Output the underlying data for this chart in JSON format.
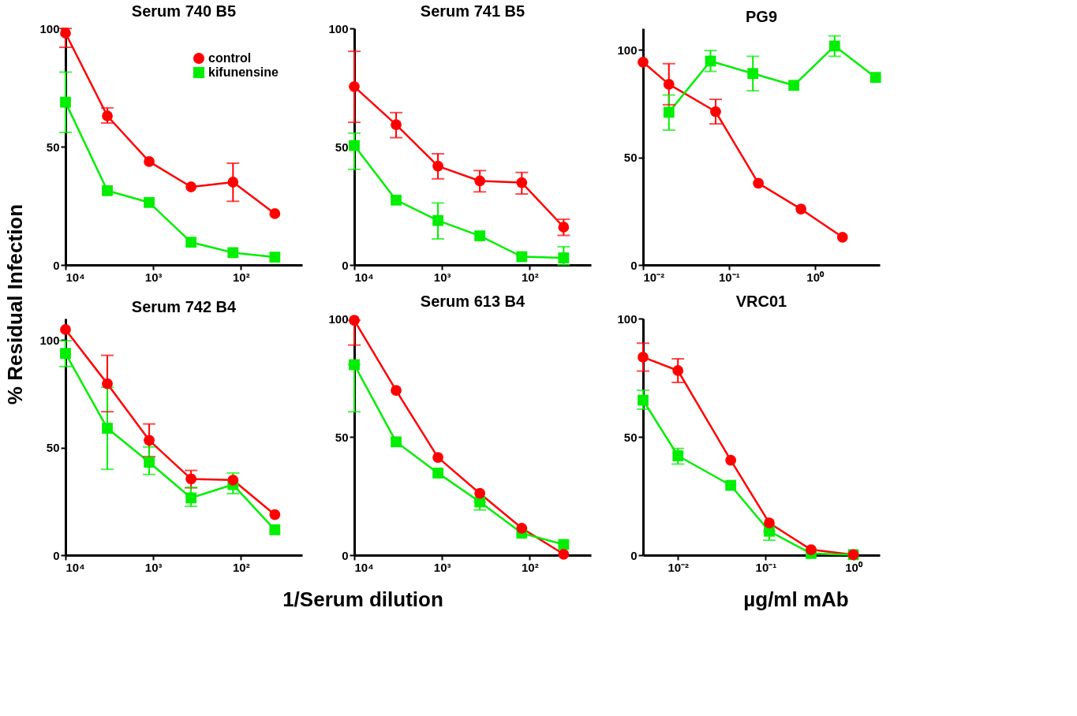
{
  "chart_data": [
    {
      "type": "line",
      "title": "Serum 740 B5",
      "ylabel": "% Residual Infection",
      "legend": "top right",
      "x": [
        10000,
        3333,
        1111,
        370,
        123,
        41
      ],
      "xlim": [
        10000,
        20
      ],
      "log": "x",
      "xticks": [
        {
          "value": 10000,
          "label": "10⁴"
        },
        {
          "value": 1000,
          "label": "10³"
        },
        {
          "value": 100,
          "label": "10²"
        }
      ],
      "ylim": [
        0,
        100
      ],
      "yticks": [
        0,
        50,
        100
      ],
      "series": [
        {
          "name": "control",
          "color": "#ff0000",
          "marker": "circle",
          "values": [
            98,
            63,
            43.7,
            33,
            35,
            21.7
          ],
          "errors": [
            [
              92,
              100
            ],
            [
              60,
              66.4
            ],
            null,
            null,
            [
              26.9,
              43
            ],
            null
          ]
        },
        {
          "name": "kifunensine",
          "color": "#00ee00",
          "marker": "square",
          "values": [
            68.8,
            31.4,
            26.4,
            9.6,
            5.2,
            3.3
          ],
          "errors": [
            [
              56,
              81.5
            ],
            null,
            null,
            null,
            null,
            null
          ]
        }
      ]
    },
    {
      "type": "line",
      "title": "Serum 741 B5",
      "x": [
        10000,
        3333,
        1111,
        370,
        123,
        41
      ],
      "xlim": [
        10000,
        20
      ],
      "log": "x",
      "xticks": [
        {
          "value": 10000,
          "label": "10⁴"
        },
        {
          "value": 1000,
          "label": "10³"
        },
        {
          "value": 100,
          "label": "10²"
        }
      ],
      "ylim": [
        0,
        100
      ],
      "yticks": [
        0,
        50,
        100
      ],
      "series": [
        {
          "color": "#ff0000",
          "marker": "circle",
          "values": [
            75.4,
            59.3,
            41.8,
            35.5,
            34.8,
            16
          ],
          "errors": [
            [
              60.3,
              90.3
            ],
            [
              53.8,
              64.4
            ],
            [
              36.4,
              47
            ],
            [
              30.9,
              39.9
            ],
            [
              30,
              39.1
            ],
            [
              12.5,
              19.3
            ]
          ]
        },
        {
          "color": "#00ee00",
          "marker": "square",
          "values": [
            50.5,
            27.4,
            18.8,
            12.3,
            3.5,
            3
          ],
          "errors": [
            [
              40.4,
              55.7
            ],
            null,
            [
              11,
              26.2
            ],
            null,
            null,
            [
              0,
              7.7
            ]
          ]
        }
      ]
    },
    {
      "type": "line",
      "title": "PG9",
      "log": "x",
      "xlim": [
        0.01,
        5.7
      ],
      "xticks": [
        {
          "value": 0.01,
          "label": "10⁻²"
        },
        {
          "value": 0.1,
          "label": "10⁻¹"
        },
        {
          "value": 1,
          "label": "10⁰"
        }
      ],
      "ylim": [
        0,
        110
      ],
      "yticks": [
        0,
        50,
        100
      ],
      "series": [
        {
          "color": "#ff0000",
          "marker": "circle",
          "x": [
            0.01,
            0.02,
            0.07,
            0.22,
            0.69,
            2.1
          ],
          "values": [
            94.3,
            84,
            71.3,
            38,
            26,
            12.9
          ],
          "errors": [
            null,
            [
              74.5,
              93.6
            ],
            [
              65.6,
              77
            ],
            null,
            null,
            null
          ]
        },
        {
          "color": "#00ee00",
          "marker": "square",
          "x": [
            0.02,
            0.061,
            0.19,
            0.57,
            1.7,
            5.1
          ],
          "values": [
            71,
            94.8,
            89,
            83.5,
            101.8,
            87.2
          ],
          "errors": [
            [
              62.7,
              79
            ],
            [
              90,
              99.7
            ],
            [
              81,
              97
            ],
            null,
            [
              97,
              106.5
            ],
            null
          ]
        }
      ]
    },
    {
      "type": "line",
      "title": "Serum 742 B4",
      "xlabel": "1/Serum dilution",
      "x": [
        10000,
        3333,
        1111,
        370,
        123,
        41
      ],
      "xlim": [
        10000,
        20
      ],
      "log": "x",
      "xticks": [
        {
          "value": 10000,
          "label": "10⁴"
        },
        {
          "value": 1000,
          "label": "10³"
        },
        {
          "value": 100,
          "label": "10²"
        }
      ],
      "ylim": [
        0,
        110
      ],
      "yticks": [
        0,
        50,
        100
      ],
      "series": [
        {
          "color": "#ff0000",
          "marker": "circle",
          "values": [
            104.9,
            79.7,
            53.4,
            35.4,
            34.9,
            18.8
          ],
          "errors": [
            null,
            [
              66.7,
              92.9
            ],
            [
              45.8,
              61
            ],
            [
              31.3,
              39.4
            ],
            null,
            null
          ]
        },
        {
          "color": "#00ee00",
          "marker": "square",
          "values": [
            93.8,
            59,
            43.2,
            26.6,
            32.8,
            11.8
          ],
          "errors": [
            [
              87.7,
              99.7
            ],
            [
              39.9,
              78.1
            ],
            [
              37.5,
              50.3
            ],
            [
              22.7,
              31.5
            ],
            [
              28.6,
              38.2
            ],
            null
          ]
        }
      ]
    },
    {
      "type": "line",
      "title": "Serum 613 B4",
      "x": [
        10000,
        3333,
        1111,
        370,
        123,
        41
      ],
      "xlim": [
        10000,
        20
      ],
      "log": "x",
      "xticks": [
        {
          "value": 10000,
          "label": "10⁴"
        },
        {
          "value": 1000,
          "label": "10³"
        },
        {
          "value": 100,
          "label": "10²"
        }
      ],
      "ylim": [
        0,
        100
      ],
      "yticks": [
        0,
        50,
        100
      ],
      "series": [
        {
          "color": "#ff0000",
          "marker": "circle",
          "values": [
            99.3,
            69.6,
            41.3,
            26.1,
            11.4,
            0.4
          ],
          "errors": [
            [
              88.8,
              99.3
            ],
            null,
            null,
            null,
            null,
            null
          ]
        },
        {
          "color": "#00ee00",
          "marker": "square",
          "values": [
            80.5,
            47.9,
            34.7,
            22.5,
            9.3,
            4.5
          ],
          "errors": [
            [
              60.6,
              80.5
            ],
            null,
            null,
            [
              19.1,
              22.5
            ],
            null,
            null
          ]
        }
      ]
    },
    {
      "type": "line",
      "title": "VRC01",
      "xlabel": "µg/ml mAb",
      "log": "x",
      "x": [
        0.004,
        0.01,
        0.04,
        0.11,
        0.33,
        1
      ],
      "xlim": [
        0.004,
        2
      ],
      "xticks": [
        {
          "value": 0.01,
          "label": "10⁻²"
        },
        {
          "value": 0.1,
          "label": "10⁻¹"
        },
        {
          "value": 1,
          "label": "10⁰"
        }
      ],
      "ylim": [
        0,
        100
      ],
      "yticks": [
        0,
        50,
        100
      ],
      "series": [
        {
          "color": "#ff0000",
          "marker": "circle",
          "values": [
            83.7,
            78,
            40.1,
            13.6,
            2.3,
            0.2
          ],
          "errors": [
            [
              77.8,
              89.6
            ],
            [
              73,
              83
            ],
            null,
            null,
            null,
            null
          ]
        },
        {
          "color": "#00ee00",
          "marker": "square",
          "values": [
            65.5,
            42,
            29.5,
            10.1,
            0.7,
            0.2
          ],
          "errors": [
            [
              61.7,
              69.7
            ],
            [
              38.5,
              45.1
            ],
            null,
            [
              6.3,
              10.1
            ],
            null,
            null
          ]
        }
      ]
    }
  ]
}
